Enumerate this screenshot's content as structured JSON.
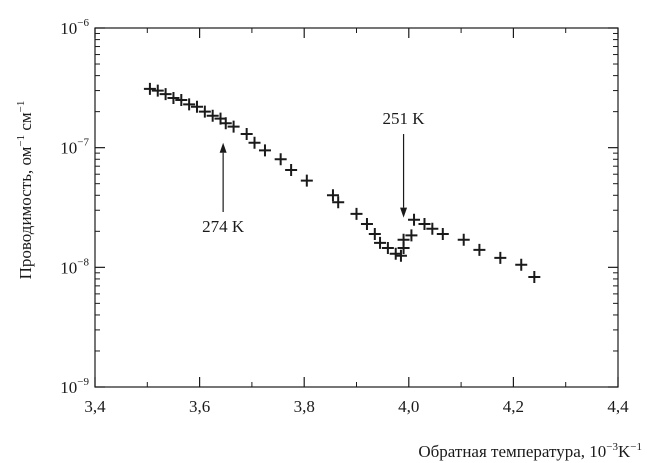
{
  "chart_data": {
    "type": "scatter",
    "marker": "plus",
    "xlabel": "Обратная температура, 10",
    "xlabel_exp": "−3",
    "xlabel_unit": "K",
    "xlabel_unit_exp": "−1",
    "ylabel": "Проводимость, ом",
    "ylabel_exp1": "−1",
    "ylabel_mid": " см",
    "ylabel_exp2": "−1",
    "xlim": [
      3.4,
      4.4
    ],
    "ylim": [
      1e-09,
      1e-06
    ],
    "yscale": "log",
    "grid": false,
    "x_ticks": [
      {
        "value": 3.4,
        "label": "3,4"
      },
      {
        "value": 3.6,
        "label": "3,6"
      },
      {
        "value": 3.8,
        "label": "3,8"
      },
      {
        "value": 4.0,
        "label": "4,0"
      },
      {
        "value": 4.2,
        "label": "4,2"
      },
      {
        "value": 4.4,
        "label": "4,4"
      }
    ],
    "y_ticks": [
      {
        "value": 1e-09,
        "base": "10",
        "exp": "−9"
      },
      {
        "value": 1e-08,
        "base": "10",
        "exp": "−8"
      },
      {
        "value": 1e-07,
        "base": "10",
        "exp": "−7"
      },
      {
        "value": 1e-06,
        "base": "10",
        "exp": "−6"
      }
    ],
    "points": [
      [
        3.505,
        3.1e-07
      ],
      [
        3.52,
        3e-07
      ],
      [
        3.535,
        2.8e-07
      ],
      [
        3.55,
        2.6e-07
      ],
      [
        3.565,
        2.5e-07
      ],
      [
        3.58,
        2.3e-07
      ],
      [
        3.595,
        2.2e-07
      ],
      [
        3.61,
        2e-07
      ],
      [
        3.625,
        1.85e-07
      ],
      [
        3.64,
        1.75e-07
      ],
      [
        3.65,
        1.6e-07
      ],
      [
        3.665,
        1.5e-07
      ],
      [
        3.69,
        1.3e-07
      ],
      [
        3.705,
        1.1e-07
      ],
      [
        3.725,
        9.5e-08
      ],
      [
        3.755,
        8e-08
      ],
      [
        3.775,
        6.5e-08
      ],
      [
        3.805,
        5.3e-08
      ],
      [
        3.855,
        4e-08
      ],
      [
        3.865,
        3.5e-08
      ],
      [
        3.9,
        2.8e-08
      ],
      [
        3.92,
        2.3e-08
      ],
      [
        3.935,
        1.9e-08
      ],
      [
        3.945,
        1.6e-08
      ],
      [
        3.96,
        1.45e-08
      ],
      [
        3.975,
        1.3e-08
      ],
      [
        3.985,
        1.25e-08
      ],
      [
        3.99,
        1.45e-08
      ],
      [
        3.99,
        1.7e-08
      ],
      [
        4.005,
        1.85e-08
      ],
      [
        4.01,
        2.5e-08
      ],
      [
        4.03,
        2.3e-08
      ],
      [
        4.045,
        2.1e-08
      ],
      [
        4.065,
        1.9e-08
      ],
      [
        4.105,
        1.7e-08
      ],
      [
        4.135,
        1.4e-08
      ],
      [
        4.175,
        1.2e-08
      ],
      [
        4.215,
        1.05e-08
      ],
      [
        4.24,
        8.3e-09
      ]
    ],
    "annotations": [
      {
        "label": "274 K",
        "x": 3.645,
        "y_tip": 1.1e-07,
        "y_tail": 2.9e-08,
        "direction": "up",
        "label_side": "below"
      },
      {
        "label": "251 K",
        "x": 3.99,
        "y_tip": 2.6e-08,
        "y_tail": 1.3e-07,
        "direction": "down",
        "label_side": "above"
      }
    ]
  }
}
